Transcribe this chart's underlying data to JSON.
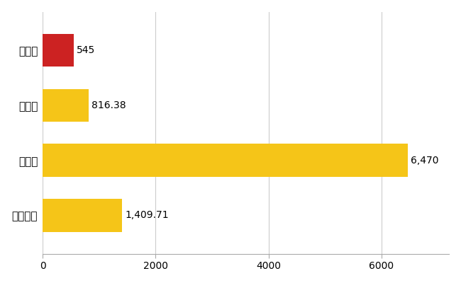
{
  "categories": [
    "七戸町",
    "県平均",
    "県最大",
    "全国平均"
  ],
  "values": [
    545,
    816.38,
    6470,
    1409.71
  ],
  "bar_colors": [
    "#cc2222",
    "#f5c518",
    "#f5c518",
    "#f5c518"
  ],
  "bar_labels": [
    "545",
    "816.38",
    "6,470",
    "1,409.71"
  ],
  "xlim": [
    0,
    7200
  ],
  "xticks": [
    0,
    2000,
    4000,
    6000
  ],
  "background_color": "#ffffff",
  "grid_color": "#cccccc",
  "label_fontsize": 11,
  "tick_fontsize": 10,
  "value_fontsize": 10
}
